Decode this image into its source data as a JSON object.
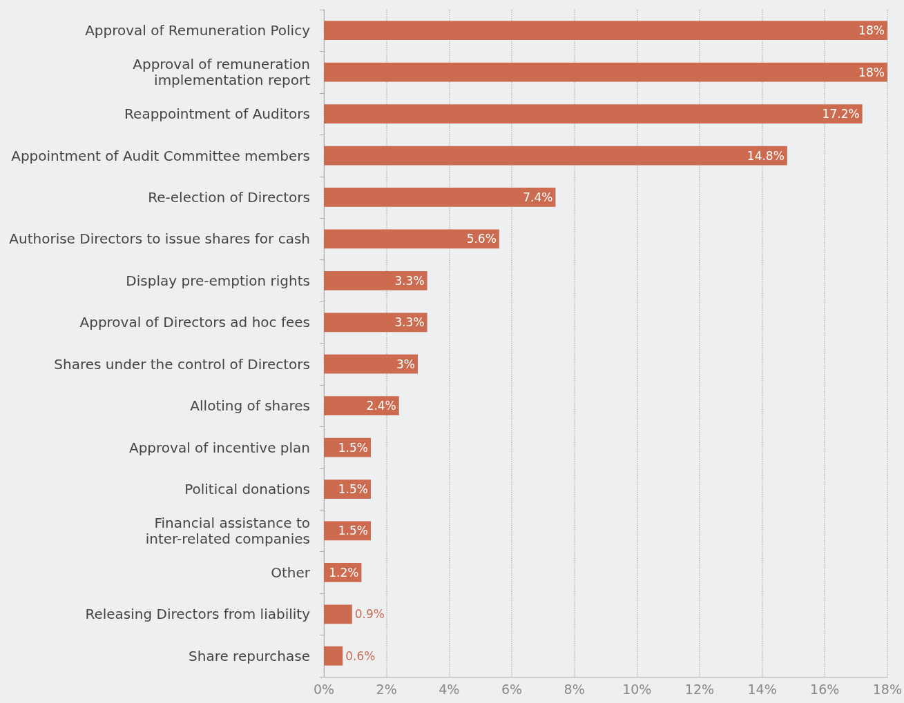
{
  "chart_data": {
    "type": "bar",
    "orientation": "horizontal",
    "categories": [
      "Approval of Remuneration Policy",
      "Approval of remuneration\nimplementation report",
      "Reappointment of Auditors",
      "Appointment of Audit Committee members",
      "Re-election of Directors",
      "Authorise Directors to issue shares for cash",
      "Display pre-emption rights",
      "Approval of Directors ad hoc fees",
      "Shares under the control of Directors",
      "Alloting of shares",
      "Approval of incentive plan",
      "Political donations",
      "Financial assistance to\ninter-related companies",
      "Other",
      "Releasing Directors from liability",
      "Share repurchase"
    ],
    "values": [
      18,
      18,
      17.2,
      14.8,
      7.4,
      5.6,
      3.3,
      3.3,
      3,
      2.4,
      1.5,
      1.5,
      1.5,
      1.2,
      0.9,
      0.6
    ],
    "value_labels": [
      "18%",
      "18%",
      "17.2%",
      "14.8%",
      "7.4%",
      "5.6%",
      "3.3%",
      "3.3%",
      "3%",
      "2.4%",
      "1.5%",
      "1.5%",
      "1.5%",
      "1.2%",
      "0.9%",
      "0.6%"
    ],
    "color": "#cc6b50",
    "xlim": [
      0,
      18
    ],
    "xticks": [
      {
        "value": 0,
        "label": "0%"
      },
      {
        "value": 2,
        "label": "2%"
      },
      {
        "value": 4,
        "label": "4%"
      },
      {
        "value": 6,
        "label": "6%"
      },
      {
        "value": 8,
        "label": "8%"
      },
      {
        "value": 10,
        "label": "10%"
      },
      {
        "value": 12,
        "label": "12%"
      },
      {
        "value": 14,
        "label": "14%"
      },
      {
        "value": 16,
        "label": "16%"
      },
      {
        "value": 18,
        "label": "18%"
      }
    ],
    "grid": "x"
  }
}
